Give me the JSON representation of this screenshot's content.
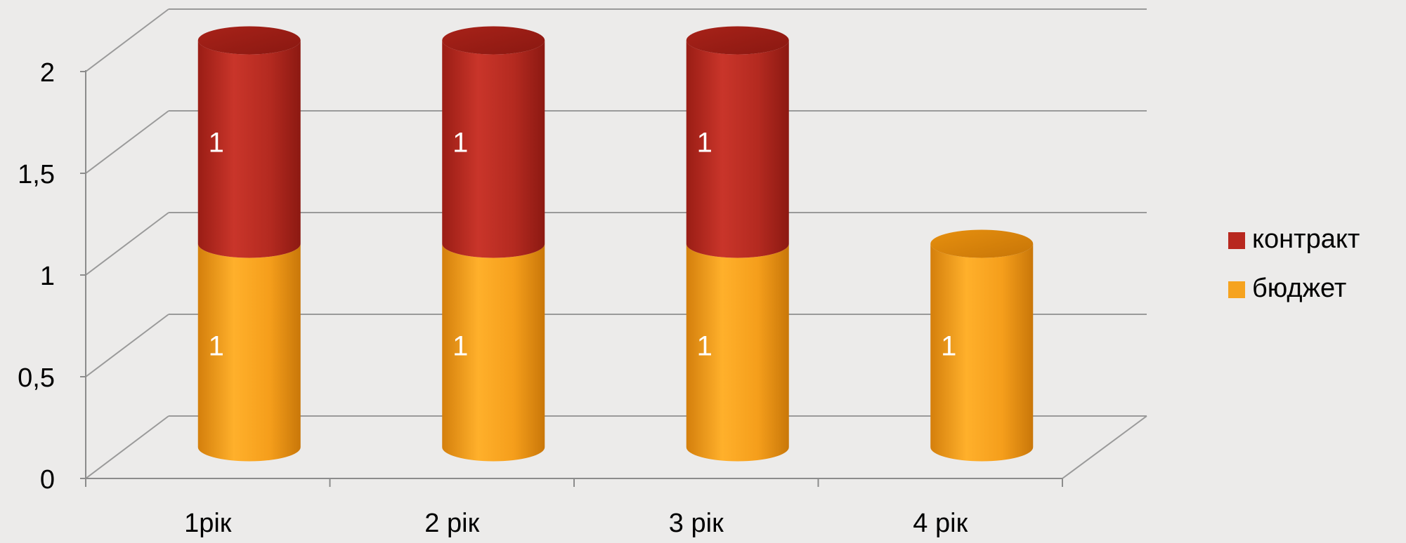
{
  "chart_data": {
    "type": "bar",
    "stacked": true,
    "style": "3d-cylinder",
    "categories": [
      "1рік",
      "2 рік",
      "3 рік",
      "4 рік"
    ],
    "series": [
      {
        "name": "бюджет",
        "values": [
          1,
          1,
          1,
          1
        ],
        "color": "#f6a31f"
      },
      {
        "name": "контракт",
        "values": [
          1,
          1,
          1,
          0
        ],
        "color": "#b8281f"
      }
    ],
    "data_labels": [
      [
        "1",
        "1",
        "1",
        "1"
      ],
      [
        "1",
        "1",
        "1",
        ""
      ]
    ],
    "y_ticks": [
      "0",
      "0,5",
      "1",
      "1,5",
      "2"
    ],
    "y_tick_values": [
      0,
      0.5,
      1,
      1.5,
      2
    ],
    "ylim": [
      0,
      2.3
    ],
    "grid": true,
    "legend_position": "right",
    "title": "",
    "xlabel": "",
    "ylabel": ""
  },
  "colors": {
    "background": "#ecebea",
    "grid": "#9a9a9a",
    "axis": "#8c8c8c",
    "label_text": "#000000",
    "data_label_text": "#ffffff"
  }
}
